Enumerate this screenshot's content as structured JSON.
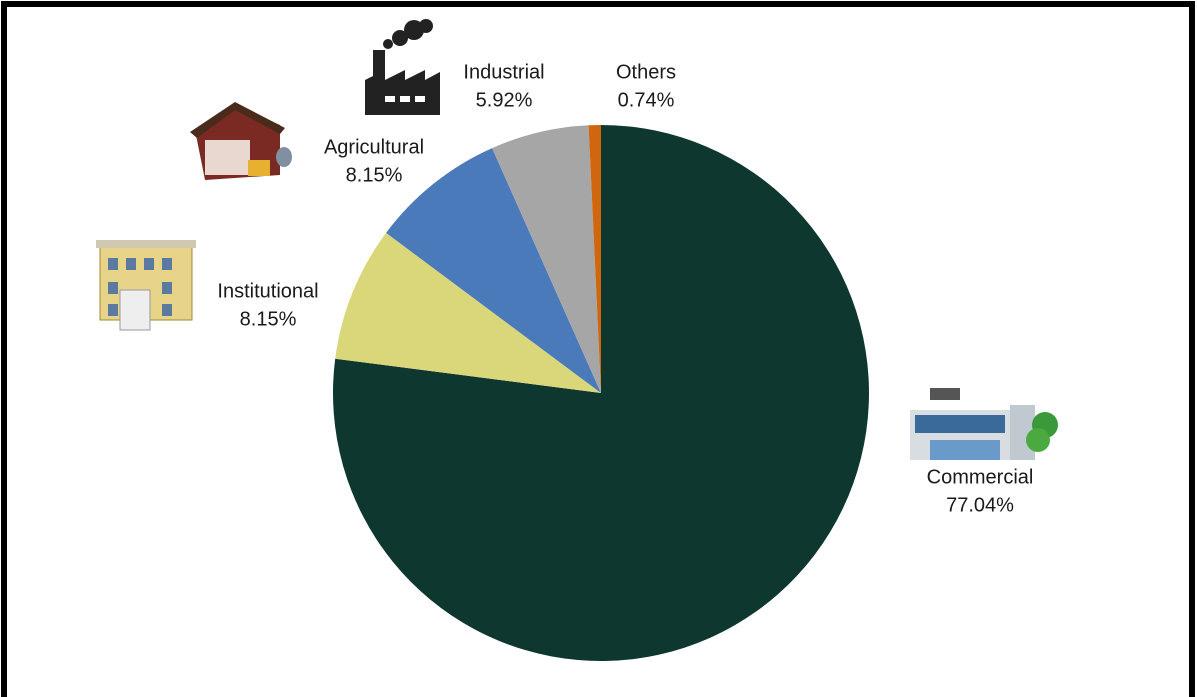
{
  "chart_data": {
    "type": "pie",
    "categories": [
      "Commercial",
      "Institutional",
      "Agricultural",
      "Industrial",
      "Others"
    ],
    "values": [
      77.04,
      8.15,
      8.15,
      5.92,
      0.74
    ],
    "value_labels": [
      "77.04%",
      "8.15%",
      "8.15%",
      "5.92%",
      "0.74%"
    ],
    "colors": [
      "#0e3730",
      "#d9d77a",
      "#4a7aba",
      "#a6a6a6",
      "#d0670f"
    ]
  }
}
